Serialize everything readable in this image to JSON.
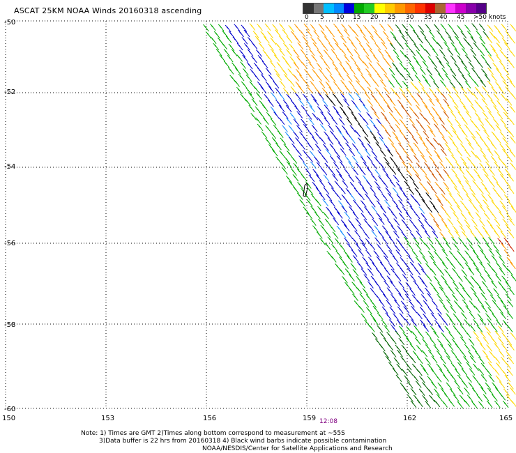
{
  "header": {
    "title": "ASCAT 25KM NOAA Winds 20160318 ascending"
  },
  "legend": {
    "labels": [
      "0",
      "5",
      "10",
      "15",
      "20",
      "25",
      "30",
      "35",
      "40",
      "45",
      ">50 knots"
    ],
    "colors": [
      "#333333",
      "#777777",
      "#00bfff",
      "#0088ff",
      "#0000dd",
      "#00aa00",
      "#22cc22",
      "#ffff00",
      "#ffcc00",
      "#ff9900",
      "#ff6600",
      "#ff3300",
      "#dd0000",
      "#aa6633",
      "#ff33ff",
      "#cc00cc",
      "#8800aa",
      "#550088"
    ]
  },
  "axes": {
    "lat_labels": [
      "-50",
      "-52",
      "-54",
      "-56",
      "-58",
      "-60"
    ],
    "lon_labels": [
      "150",
      "153",
      "156",
      "159",
      "162",
      "165"
    ]
  },
  "time_label": "12:08",
  "notes": {
    "line1": "Note: 1) Times are GMT 2)Times along bottom correspond to measurement at ~55S",
    "line2": "3)Data buffer is 22 hrs from 20160318 4) Black wind barbs indicate possible contamination",
    "line3": "NOAA/NESDIS/Center for Satellite Applications and Research"
  },
  "map": {
    "barb_colors": {
      "blue": "#0000cc",
      "lightblue": "#1e90ff",
      "green": "#00aa00",
      "darkgreen": "#006400",
      "yellow": "#ffd700",
      "orange": "#ff9900",
      "brown": "#cc5500",
      "red": "#cc2200",
      "black": "#000000"
    },
    "grid_color": "#000000"
  }
}
